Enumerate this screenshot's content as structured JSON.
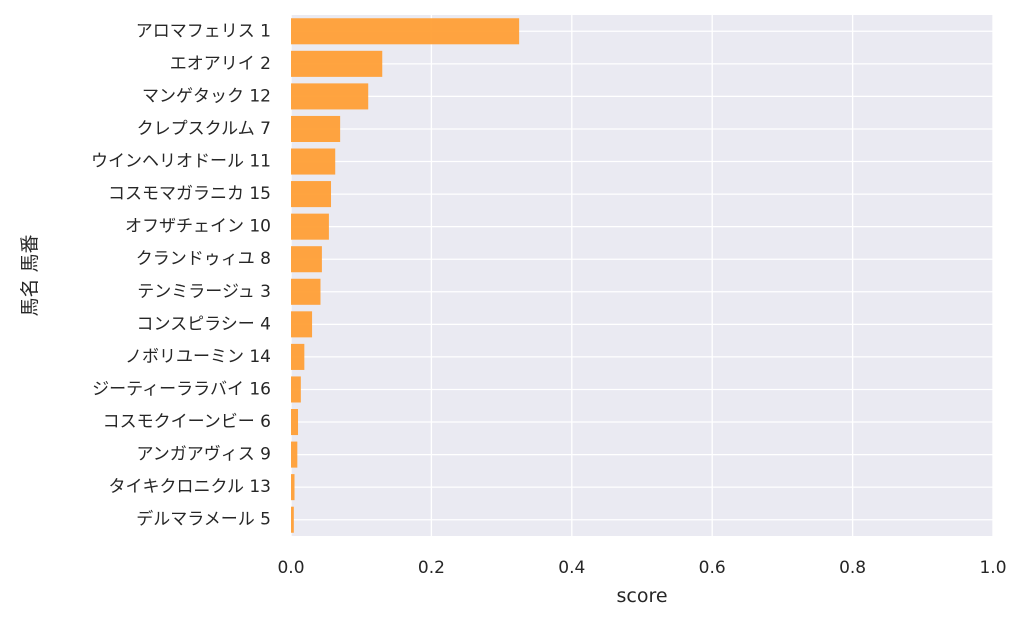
{
  "chart_data": {
    "type": "bar",
    "orientation": "horizontal",
    "categories": [
      "アロマフェリス 1",
      "エオアリイ 2",
      "マンゲタック 12",
      "クレプスクルム 7",
      "ウインヘリオドール 11",
      "コスモマガラニカ 15",
      "オフザチェイン 10",
      "クランドゥィユ 8",
      "テンミラージュ 3",
      "コンスピラシー 4",
      "ノボリユーミン 14",
      "ジーティーララバイ 16",
      "コスモクイーンビー 6",
      "アンガアヴィス 9",
      "タイキクロニクル 13",
      "デルマラメール 5"
    ],
    "values": [
      0.325,
      0.13,
      0.11,
      0.07,
      0.063,
      0.057,
      0.054,
      0.044,
      0.042,
      0.03,
      0.019,
      0.014,
      0.01,
      0.009,
      0.005,
      0.004
    ],
    "xlabel": "score",
    "ylabel": "馬名 馬番",
    "xlim": [
      0,
      1.0
    ],
    "xticks": [
      "0.0",
      "0.2",
      "0.4",
      "0.6",
      "0.8",
      "1.0"
    ],
    "grid": true,
    "bar_color": "#ff9f36",
    "background_color": "#eaeaf2",
    "grid_color": "#ffffff"
  }
}
